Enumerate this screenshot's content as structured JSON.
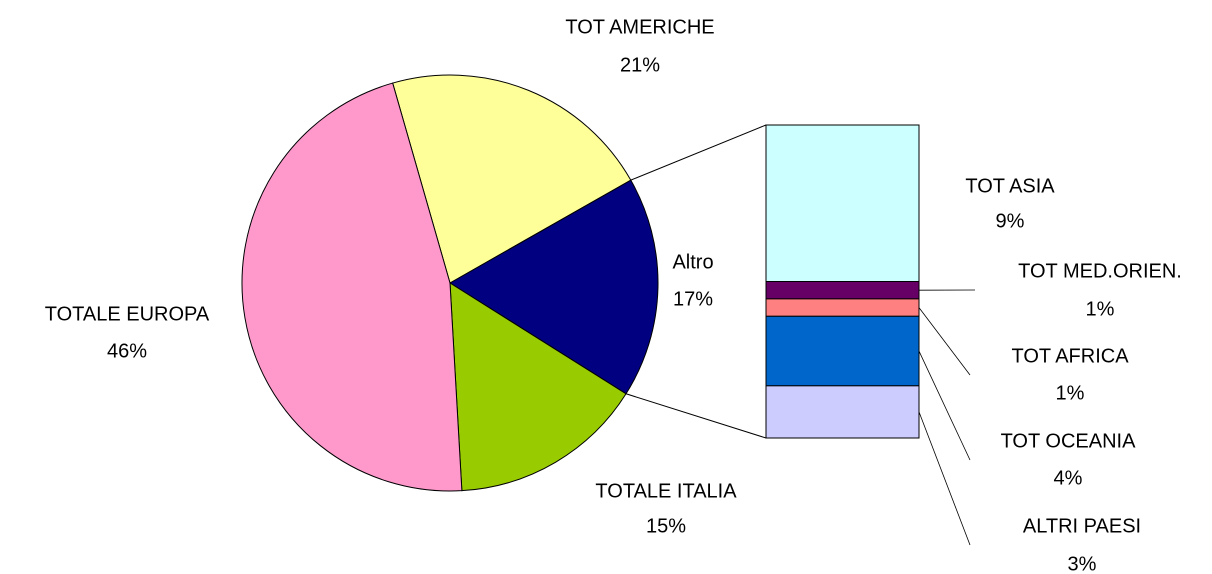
{
  "chart_data": {
    "type": "pie_of_bar",
    "categories": [
      "TOT AMERICHE",
      "Altro",
      "TOTALE ITALIA",
      "TOTALE EUROPA"
    ],
    "values": [
      21,
      17,
      15,
      46
    ],
    "value_labels": [
      "21%",
      "17%",
      "15%",
      "46%"
    ],
    "colors": [
      "#ffff99",
      "#000080",
      "#99cc00",
      "#ff99cc"
    ],
    "breakdown": {
      "categories": [
        "TOT ASIA",
        "TOT MED.ORIEN.",
        "TOT AFRICA",
        "TOT OCEANIA",
        "ALTRI PAESI"
      ],
      "values": [
        9,
        1,
        1,
        4,
        3
      ],
      "value_labels": [
        "9%",
        "1%",
        "1%",
        "4%",
        "3%"
      ],
      "colors": [
        "#ccffff",
        "#660066",
        "#ff8080",
        "#0066cc",
        "#ccccff"
      ]
    }
  }
}
